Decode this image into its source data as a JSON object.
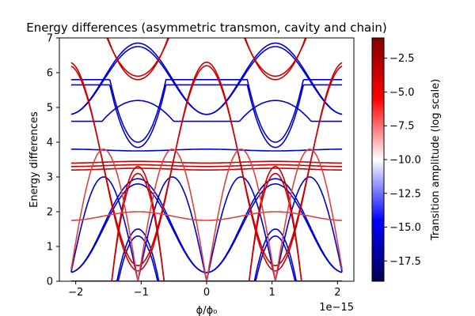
{
  "chart_data": {
    "type": "line",
    "title": "Energy differences (asymmetric transmon, cavity and chain)",
    "xlabel": "ϕ/ϕ₀",
    "ylabel": "Energy differences",
    "x_offset_text": "1e−15",
    "xlim": [
      -2.25,
      2.25
    ],
    "ylim": [
      0,
      7
    ],
    "x_ticks": [
      -2,
      -1,
      0,
      1,
      2
    ],
    "x_tick_labels": [
      "−2",
      "−1",
      "0",
      "1",
      "2"
    ],
    "y_ticks": [
      0,
      1,
      2,
      3,
      4,
      5,
      6,
      7
    ],
    "y_tick_labels": [
      "0",
      "1",
      "2",
      "3",
      "4",
      "5",
      "6",
      "7"
    ],
    "grid": false,
    "colorbar": {
      "label": "Transition amplitude (log scale)",
      "range": [
        -19,
        -1
      ],
      "ticks": [
        -17.5,
        -15.0,
        -12.5,
        -10.0,
        -7.5,
        -5.0,
        -2.5
      ],
      "tick_labels": [
        "−17.5",
        "−15.0",
        "−12.5",
        "−10.0",
        "−7.5",
        "−5.0",
        "−2.5"
      ],
      "colormap": [
        "#00004d",
        "#0000ff",
        "#ffffff",
        "#ff0000",
        "#800000"
      ]
    },
    "x_range": [
      -2.07,
      2.07
    ],
    "period": 2.1,
    "series": [
      {
        "color": "#0000d0",
        "values": [
          [
            -2.05,
            0.0
          ],
          [
            -1.5,
            0.0
          ],
          [
            -1.0,
            0.0
          ],
          [
            -0.5,
            0.0
          ],
          [
            0.0,
            0.0
          ],
          [
            0.5,
            0.0
          ],
          [
            1.0,
            0.0
          ],
          [
            1.5,
            0.0
          ],
          [
            2.05,
            0.0
          ]
        ]
      },
      {
        "color": "#0000d0",
        "param": {
          "kind": "cos",
          "A": 0.25,
          "B": 2.8
        }
      },
      {
        "color": "#0000d0",
        "param": {
          "kind": "cos",
          "A": 0.25,
          "B": 2.95
        }
      },
      {
        "color": "#0000d0",
        "param": {
          "kind": "abs",
          "scale": 3.0
        }
      },
      {
        "color": "#0000d0",
        "param": {
          "kind": "bump",
          "center": 1.05,
          "h": 1.5,
          "w": 0.32
        }
      },
      {
        "color": "#0000d0",
        "param": {
          "kind": "bump",
          "center": 1.05,
          "h": 1.3,
          "w": 0.3
        }
      },
      {
        "color": "#0000d0",
        "param": {
          "kind": "cos",
          "A": 4.8,
          "B": 6.85
        }
      },
      {
        "color": "#0000d0",
        "param": {
          "kind": "cos",
          "A": 4.8,
          "B": 6.75
        }
      },
      {
        "color": "#0000d0",
        "param": {
          "kind": "cos",
          "A": 3.8,
          "B": 3.75
        }
      },
      {
        "color": "#0000d0",
        "param": {
          "kind": "bump_inv",
          "center": 1.05,
          "h": 4.0,
          "w": 0.35
        }
      },
      {
        "color": "#0000d0",
        "param": {
          "kind": "bump_inv",
          "center": 1.05,
          "h": 3.85,
          "w": 0.35
        }
      },
      {
        "color": "#0000d0",
        "param": {
          "kind": "hump",
          "center": 1.05,
          "h": 5.2,
          "w": 0.5
        }
      },
      {
        "color": "#cc0000",
        "param": {
          "kind": "cos",
          "A": 3.4,
          "B": 3.45
        }
      },
      {
        "color": "#cc0000",
        "param": {
          "kind": "cos",
          "A": 3.3,
          "B": 3.35
        }
      },
      {
        "color": "#cc0000",
        "param": {
          "kind": "cos",
          "A": 3.2,
          "B": 3.25
        }
      },
      {
        "color": "#cc0000",
        "param": {
          "kind": "bump",
          "center": 1.05,
          "h": 3.3,
          "w": 0.4
        }
      },
      {
        "color": "#cc0000",
        "param": {
          "kind": "bump",
          "center": 1.05,
          "h": 3.1,
          "w": 0.4
        }
      },
      {
        "color": "#cc0000",
        "param": {
          "kind": "cos",
          "A": 6.3,
          "B": 0.3
        }
      },
      {
        "color": "#cc0000",
        "param": {
          "kind": "cos",
          "A": 6.2,
          "B": 0.45
        }
      },
      {
        "color": "#cc0000",
        "param": {
          "kind": "valley",
          "center": 1.05,
          "h": 5.9,
          "w": 0.45
        }
      },
      {
        "color": "#cc0000",
        "param": {
          "kind": "valley",
          "center": 1.05,
          "h": 5.8,
          "w": 0.42
        }
      },
      {
        "color": "#e04040",
        "param": {
          "kind": "cos",
          "A": 1.75,
          "B": 2.0
        }
      },
      {
        "color": "#e04040",
        "param": {
          "kind": "abs",
          "scale": 3.8
        }
      }
    ]
  }
}
